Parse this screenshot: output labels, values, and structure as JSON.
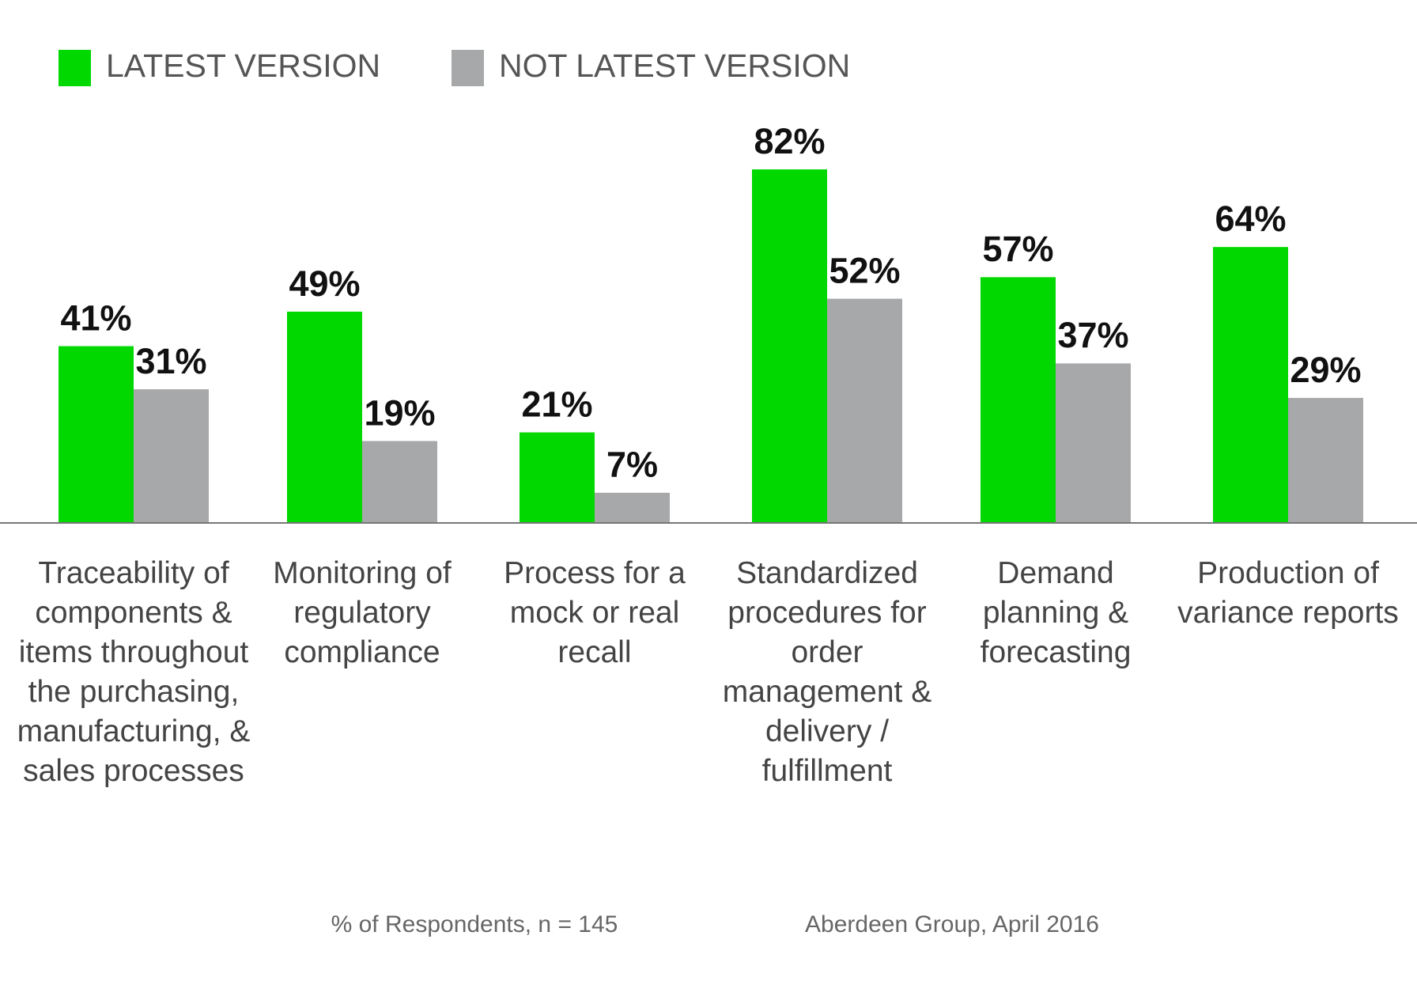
{
  "chart_data": {
    "type": "bar",
    "categories": [
      "Traceability of components & items throughout the purchasing, manufacturing, & sales processes",
      "Monitoring of regulatory compliance",
      "Process for a mock or real recall",
      "Standardized procedures for order management & delivery / fulfillment",
      "Demand planning & forecasting",
      "Production of variance reports"
    ],
    "series": [
      {
        "name": "LATEST VERSION",
        "color": "#00d800",
        "values": [
          41,
          49,
          21,
          82,
          57,
          64
        ],
        "value_labels": [
          "41%",
          "49%",
          "21%",
          "82%",
          "57%",
          "64%"
        ]
      },
      {
        "name": "NOT LATEST VERSION",
        "color": "#a7a8aa",
        "values": [
          31,
          19,
          7,
          52,
          37,
          29
        ],
        "value_labels": [
          "31%",
          "19%",
          "7%",
          "52%",
          "37%",
          "29%"
        ]
      }
    ],
    "notes": [
      "% of Respondents, n = 145",
      "Aberdeen Group, April 2016"
    ]
  }
}
